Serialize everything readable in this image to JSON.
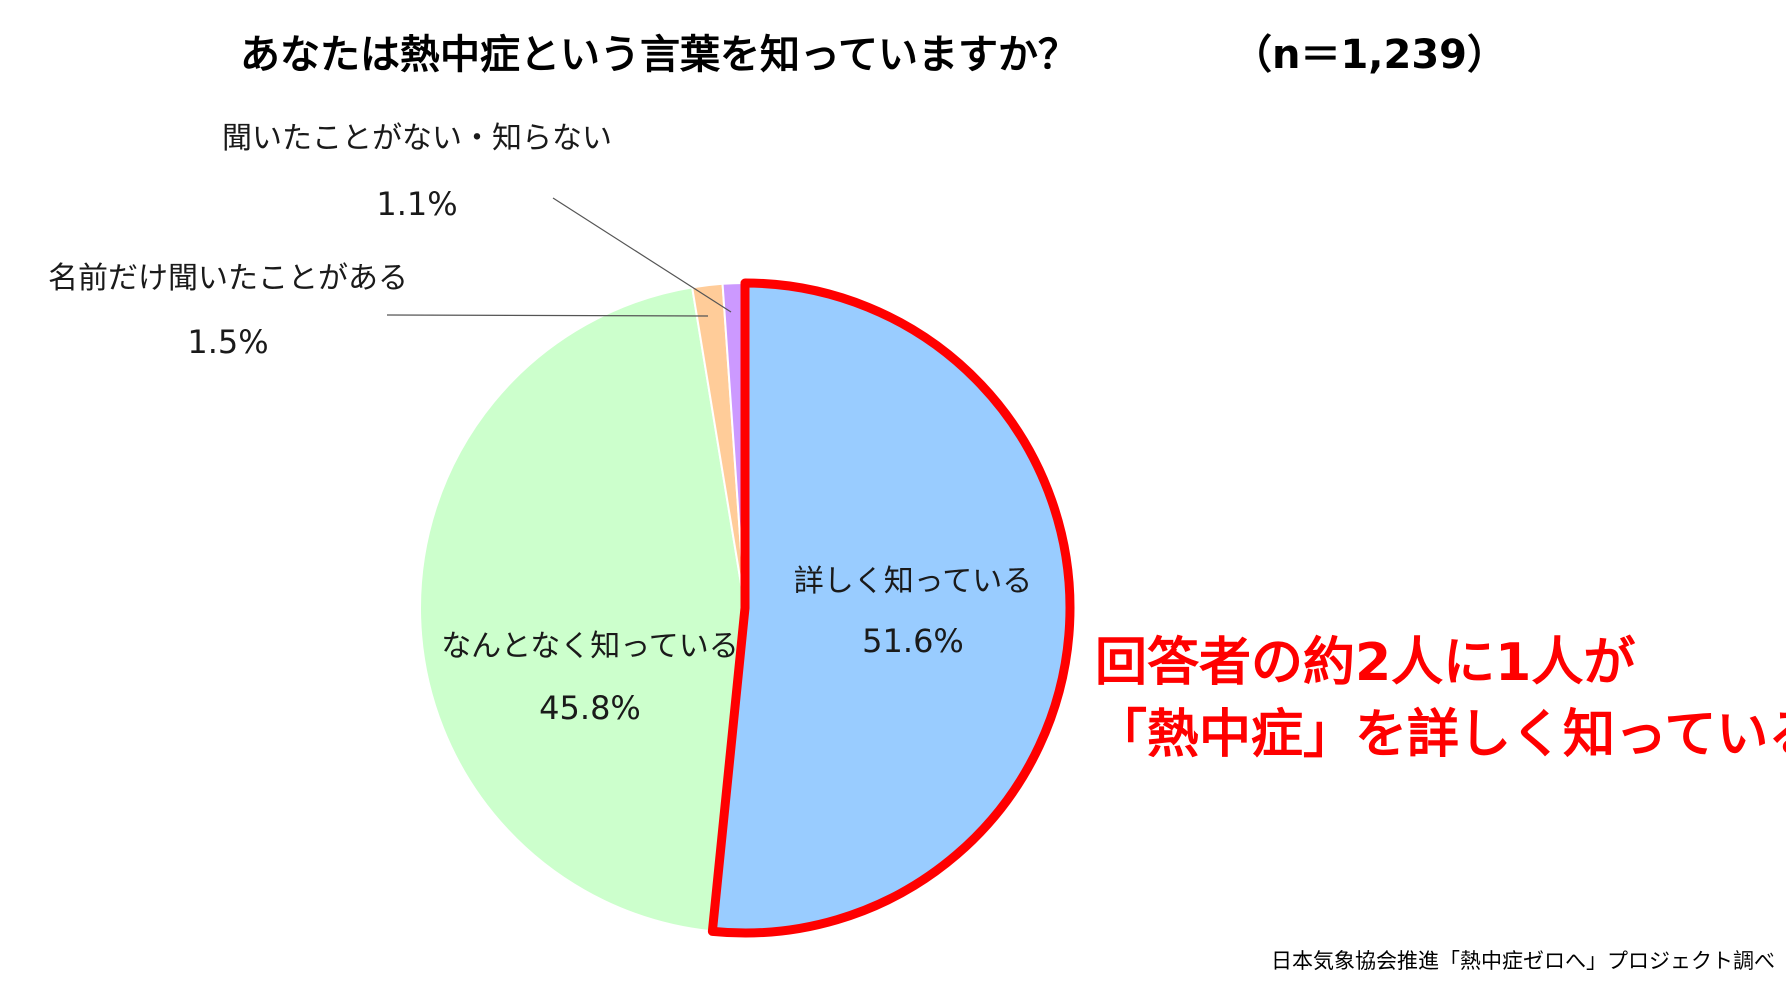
{
  "title": "あなたは熱中症という言葉を知っていますか？",
  "sample_size": "（n＝1,239）",
  "chart_data": {
    "type": "pie",
    "title": "あなたは熱中症という言葉を知っていますか？",
    "sample_size": "n＝1,239",
    "slices": [
      {
        "label": "詳しく知っている",
        "value": 51.6,
        "value_text": "51.6%",
        "color": "#99ccff",
        "highlighted": true
      },
      {
        "label": "なんとなく知っている",
        "value": 45.8,
        "value_text": "45.8%",
        "color": "#ccffcc"
      },
      {
        "label": "名前だけ聞いたことがある",
        "value": 1.5,
        "value_text": "1.5%",
        "color": "#ffcc99"
      },
      {
        "label": "聞いたことがない・知らない",
        "value": 1.1,
        "value_text": "1.1%",
        "color": "#cc99ff"
      }
    ],
    "start": "12 o'clock, clockwise",
    "highlight_color": "#ff0000"
  },
  "callout": {
    "line1": "回答者の約2人に1人が",
    "line2": "「熱中症」を詳しく知っている",
    "color": "#ff0000"
  },
  "source": "日本気象協会推進「熱中症ゼロへ」プロジェクト調べ"
}
